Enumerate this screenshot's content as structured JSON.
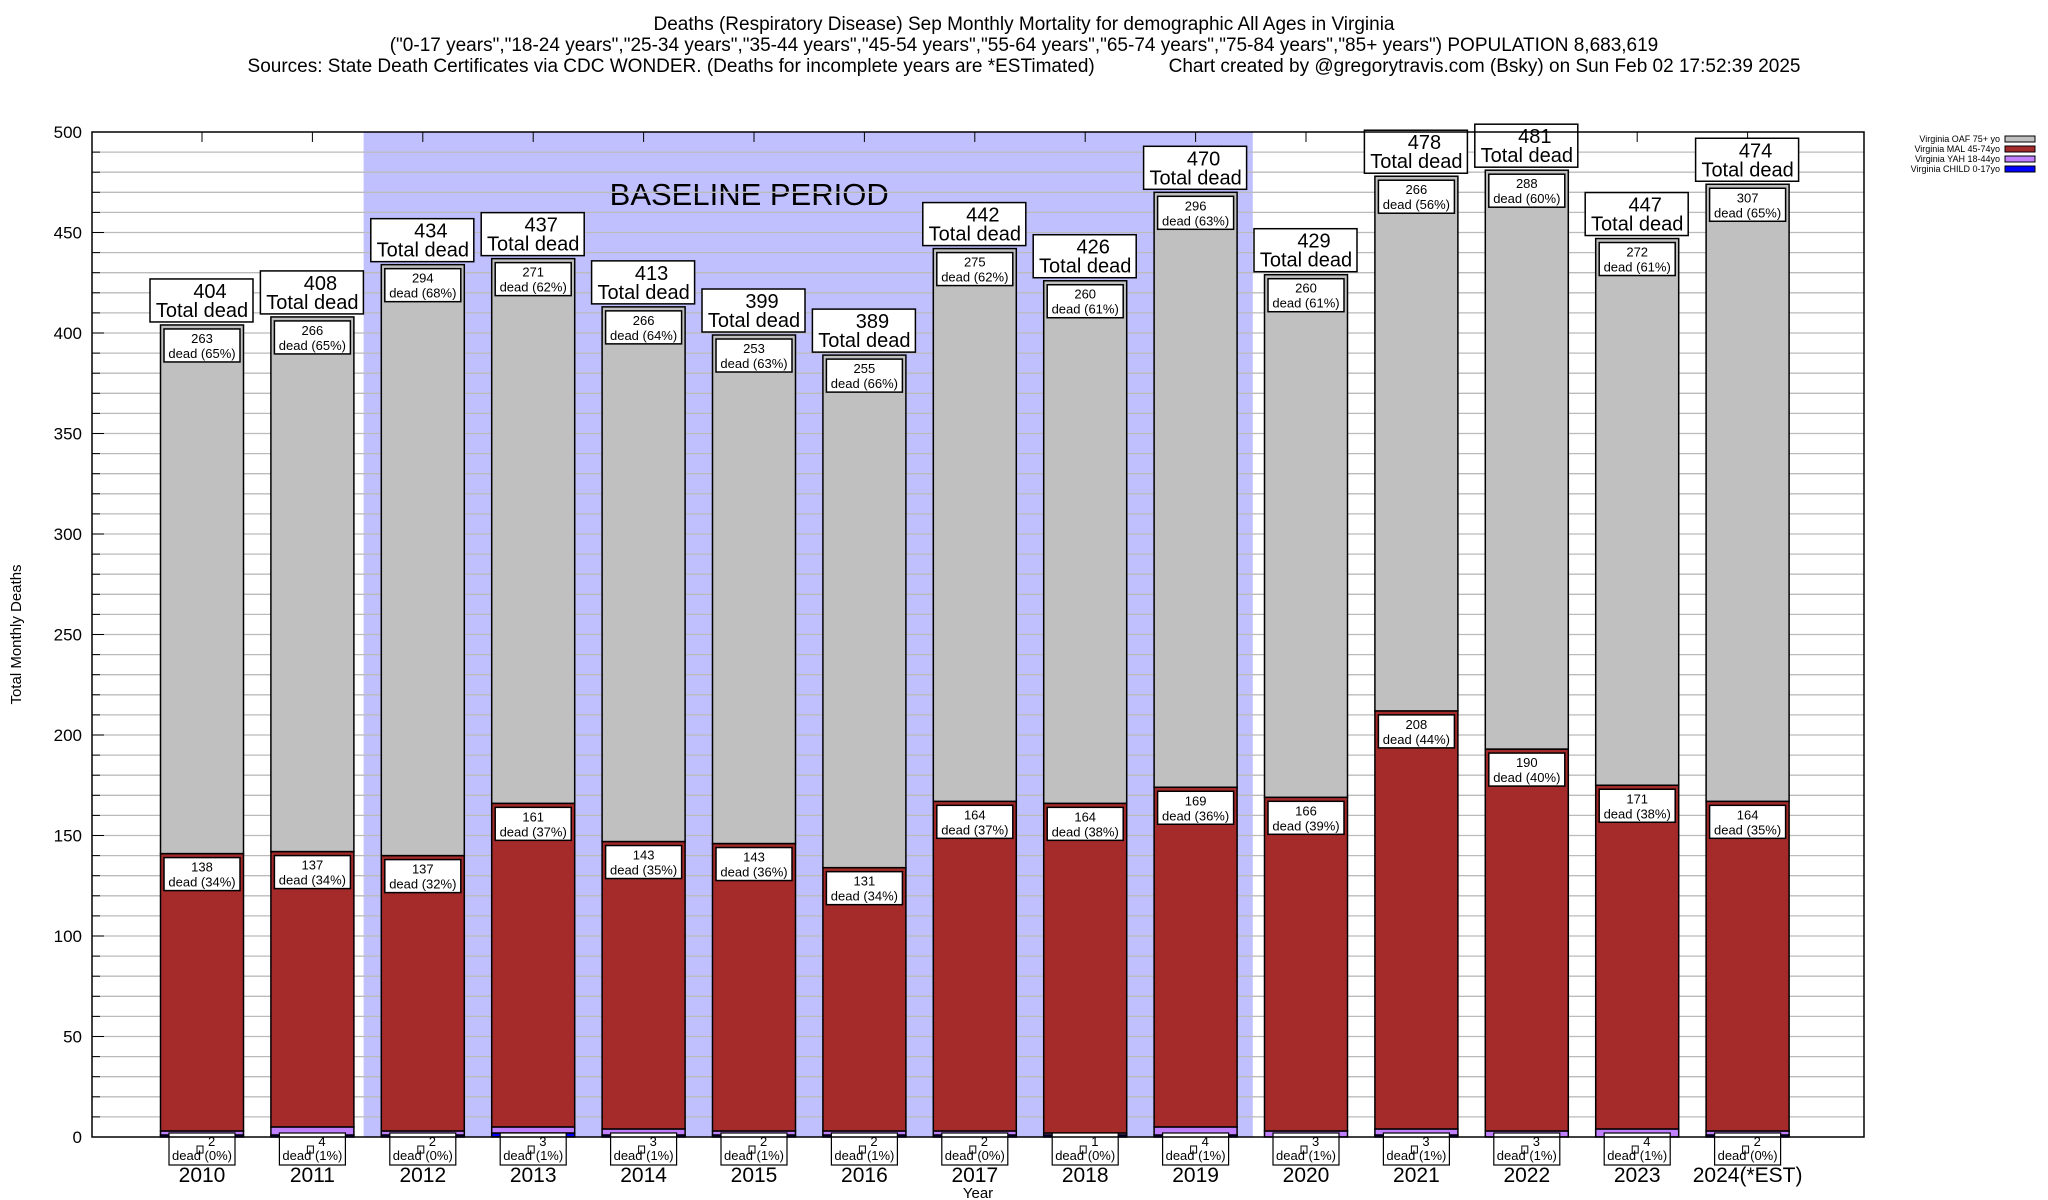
{
  "title_lines": [
    "Deaths (Respiratory Disease) Sep Monthly Mortality for demographic All Ages in Virginia",
    "(\"0-17 years\",\"18-24 years\",\"25-34 years\",\"35-44 years\",\"45-54 years\",\"55-64 years\",\"65-74 years\",\"75-84 years\",\"85+ years\") POPULATION 8,683,619",
    "Sources: State Death Certificates via CDC WONDER. (Deaths for incomplete years are *ESTimated)              Chart created by @gregorytravis.com (Bsky) on Sun Feb 02 17:52:39 2025"
  ],
  "chart_data": {
    "type": "bar",
    "stacked": true,
    "xlabel": "Year",
    "ylabel": "Total Monthly Deaths",
    "ylim": [
      0,
      500
    ],
    "yticks": [
      0,
      50,
      100,
      150,
      200,
      250,
      300,
      350,
      400,
      450,
      500
    ],
    "grid": true,
    "legend_placement": "top-right, outside",
    "annotation": "BASELINE PERIOD",
    "baseline_period": [
      "2012",
      "2019"
    ],
    "total_label": "Total dead",
    "dead_word": "dead",
    "categories": [
      "2010",
      "2011",
      "2012",
      "2013",
      "2014",
      "2015",
      "2016",
      "2017",
      "2018",
      "2019",
      "2020",
      "2021",
      "2022",
      "2023",
      "2024(*EST)"
    ],
    "totals": [
      404,
      408,
      434,
      437,
      413,
      399,
      389,
      442,
      426,
      470,
      429,
      478,
      481,
      447,
      474
    ],
    "series": [
      {
        "name": "Virginia CHILD 0-17yo",
        "color": "#0000ff",
        "values": [
          1,
          1,
          1,
          2,
          1,
          1,
          1,
          1,
          1,
          1,
          0,
          1,
          0,
          0,
          1
        ]
      },
      {
        "name": "Virginia YAH 18-44yo",
        "color": "#c080ff",
        "values": [
          2,
          4,
          2,
          3,
          3,
          2,
          2,
          2,
          1,
          4,
          3,
          3,
          3,
          4,
          2
        ],
        "pct": [
          "0%",
          "1%",
          "0%",
          "1%",
          "1%",
          "1%",
          "1%",
          "0%",
          "0%",
          "1%",
          "1%",
          "1%",
          "1%",
          "1%",
          "0%"
        ]
      },
      {
        "name": "Virginia MAL 45-74yo",
        "color": "#a52a2a",
        "values": [
          138,
          137,
          137,
          161,
          143,
          143,
          131,
          164,
          164,
          169,
          166,
          208,
          190,
          171,
          164
        ],
        "pct": [
          "34%",
          "34%",
          "32%",
          "37%",
          "35%",
          "36%",
          "34%",
          "37%",
          "38%",
          "36%",
          "39%",
          "44%",
          "40%",
          "38%",
          "35%"
        ]
      },
      {
        "name": "Virginia OAF 75+ yo",
        "color": "#c0c0c0",
        "values": [
          263,
          266,
          294,
          271,
          266,
          253,
          255,
          275,
          260,
          296,
          260,
          266,
          288,
          272,
          307
        ],
        "pct": [
          "65%",
          "65%",
          "68%",
          "62%",
          "64%",
          "63%",
          "66%",
          "62%",
          "61%",
          "63%",
          "61%",
          "56%",
          "60%",
          "61%",
          "65%"
        ]
      }
    ],
    "baseline_color": "#c0c0ff"
  }
}
